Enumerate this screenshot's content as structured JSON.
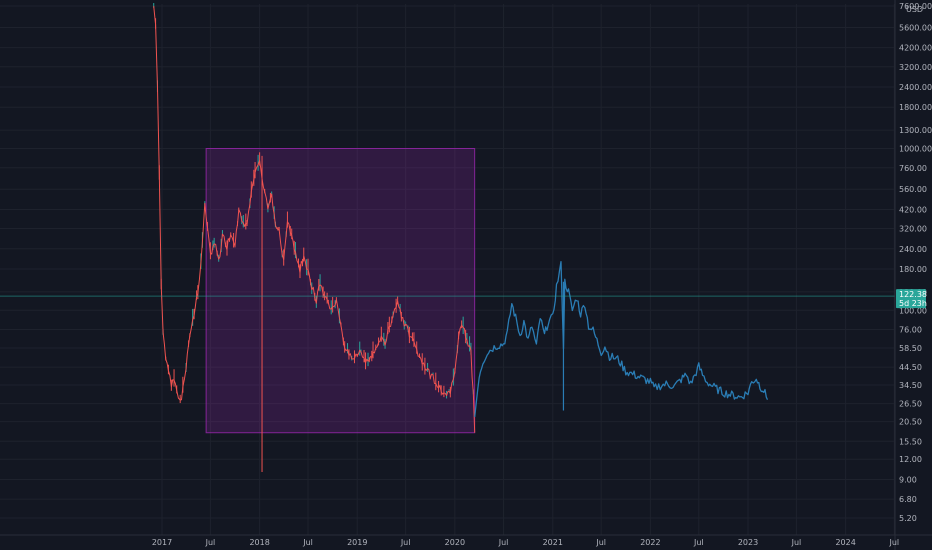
{
  "chart_data": {
    "type": "candlestick",
    "title": "",
    "currency_label": "USD",
    "y_scale": "log",
    "ylim": [
      4.5,
      7600
    ],
    "grid": true,
    "y_ticks": [
      "7600.00",
      "5600.00",
      "4200.00",
      "3200.00",
      "2400.00",
      "1800.00",
      "1300.00",
      "1000.00",
      "760.00",
      "560.00",
      "420.00",
      "320.00",
      "240.00",
      "180.00",
      "130.00",
      "100.00",
      "76.00",
      "58.50",
      "44.50",
      "34.50",
      "26.50",
      "20.50",
      "15.50",
      "12.00",
      "9.00",
      "6.80",
      "5.20"
    ],
    "y_tick_values": [
      7600,
      5600,
      4200,
      3200,
      2400,
      1800,
      1300,
      1000,
      760,
      560,
      420,
      320,
      240,
      180,
      130,
      100,
      76,
      58.5,
      44.5,
      34.5,
      26.5,
      20.5,
      15.5,
      12,
      9,
      6.8,
      5.2
    ],
    "x_ticks": [
      "2017",
      "Jul",
      "2018",
      "Jul",
      "2019",
      "Jul",
      "2020",
      "Jul",
      "2021",
      "Jul",
      "2022",
      "Jul",
      "2023",
      "Jul",
      "2024",
      "Jul"
    ],
    "x_tick_dates": [
      "2017-01-01",
      "2017-07-01",
      "2018-01-01",
      "2018-07-01",
      "2019-01-01",
      "2019-07-01",
      "2020-01-01",
      "2020-07-01",
      "2021-01-01",
      "2021-07-01",
      "2022-01-01",
      "2022-07-01",
      "2023-01-01",
      "2023-07-01",
      "2024-01-01",
      "2024-07-01"
    ],
    "last_price": {
      "value": 122.38,
      "label": "122.38",
      "countdown": "5d 23h"
    },
    "box_annotation": {
      "start": "2017-06-15",
      "end": "2020-03-15",
      "low": 17.5,
      "high": 1000,
      "color": "#9c27b0"
    },
    "series": [
      {
        "name": "",
        "color": "#ef5350",
        "up_color": "#26a69a",
        "points": [
          [
            "2016-12-01",
            7600
          ],
          [
            "2016-12-08",
            6000
          ],
          [
            "2016-12-15",
            2500
          ],
          [
            "2016-12-22",
            700
          ],
          [
            "2016-12-29",
            140
          ],
          [
            "2017-01-05",
            75
          ],
          [
            "2017-01-15",
            50
          ],
          [
            "2017-01-25",
            40
          ],
          [
            "2017-02-05",
            35
          ],
          [
            "2017-02-15",
            38
          ],
          [
            "2017-02-25",
            33
          ],
          [
            "2017-03-10",
            27
          ],
          [
            "2017-03-20",
            32
          ],
          [
            "2017-04-01",
            45
          ],
          [
            "2017-04-15",
            70
          ],
          [
            "2017-05-01",
            95
          ],
          [
            "2017-05-15",
            130
          ],
          [
            "2017-06-01",
            250
          ],
          [
            "2017-06-10",
            450
          ],
          [
            "2017-06-20",
            330
          ],
          [
            "2017-07-01",
            220
          ],
          [
            "2017-07-15",
            270
          ],
          [
            "2017-08-01",
            200
          ],
          [
            "2017-08-15",
            290
          ],
          [
            "2017-09-01",
            250
          ],
          [
            "2017-09-15",
            300
          ],
          [
            "2017-10-01",
            260
          ],
          [
            "2017-10-15",
            420
          ],
          [
            "2017-11-01",
            330
          ],
          [
            "2017-11-15",
            360
          ],
          [
            "2017-12-01",
            550
          ],
          [
            "2017-12-15",
            700
          ],
          [
            "2018-01-01",
            850
          ],
          [
            "2018-01-10",
            620
          ],
          [
            "2018-01-20",
            520
          ],
          [
            "2018-02-01",
            420
          ],
          [
            "2018-02-15",
            500
          ],
          [
            "2018-03-01",
            350
          ],
          [
            "2018-03-15",
            300
          ],
          [
            "2018-04-01",
            200
          ],
          [
            "2018-04-15",
            360
          ],
          [
            "2018-05-01",
            300
          ],
          [
            "2018-05-15",
            230
          ],
          [
            "2018-06-01",
            180
          ],
          [
            "2018-06-15",
            220
          ],
          [
            "2018-07-01",
            170
          ],
          [
            "2018-07-15",
            140
          ],
          [
            "2018-08-01",
            115
          ],
          [
            "2018-08-15",
            150
          ],
          [
            "2018-09-01",
            120
          ],
          [
            "2018-09-15",
            110
          ],
          [
            "2018-10-01",
            100
          ],
          [
            "2018-10-15",
            120
          ],
          [
            "2018-11-01",
            80
          ],
          [
            "2018-11-15",
            60
          ],
          [
            "2018-12-01",
            55
          ],
          [
            "2019-01-01",
            50
          ],
          [
            "2019-01-15",
            55
          ],
          [
            "2019-02-01",
            48
          ],
          [
            "2019-02-15",
            52
          ],
          [
            "2019-03-01",
            55
          ],
          [
            "2019-04-01",
            70
          ],
          [
            "2019-04-15",
            62
          ],
          [
            "2019-05-01",
            80
          ],
          [
            "2019-05-15",
            90
          ],
          [
            "2019-06-01",
            120
          ],
          [
            "2019-06-15",
            95
          ],
          [
            "2019-07-01",
            80
          ],
          [
            "2019-07-15",
            70
          ],
          [
            "2019-08-01",
            62
          ],
          [
            "2019-09-01",
            48
          ],
          [
            "2019-10-01",
            40
          ],
          [
            "2019-11-01",
            35
          ],
          [
            "2019-12-01",
            29
          ],
          [
            "2019-12-15",
            32
          ],
          [
            "2020-01-01",
            40
          ],
          [
            "2020-01-15",
            70
          ],
          [
            "2020-02-01",
            80
          ],
          [
            "2020-02-15",
            65
          ],
          [
            "2020-03-01",
            55
          ],
          [
            "2020-03-10",
            30
          ],
          [
            "2020-03-15",
            17.5
          ]
        ]
      },
      {
        "name": "",
        "color": "#2a7db5",
        "points": [
          [
            "2020-03-15",
            22
          ],
          [
            "2020-04-01",
            40
          ],
          [
            "2020-04-15",
            48
          ],
          [
            "2020-05-01",
            55
          ],
          [
            "2020-06-01",
            60
          ],
          [
            "2020-07-01",
            62
          ],
          [
            "2020-07-15",
            72
          ],
          [
            "2020-08-01",
            110
          ],
          [
            "2020-08-15",
            90
          ],
          [
            "2020-09-01",
            70
          ],
          [
            "2020-09-15",
            85
          ],
          [
            "2020-10-01",
            65
          ],
          [
            "2020-10-15",
            80
          ],
          [
            "2020-11-01",
            60
          ],
          [
            "2020-11-15",
            90
          ],
          [
            "2020-12-01",
            70
          ],
          [
            "2020-12-15",
            85
          ],
          [
            "2021-01-01",
            90
          ],
          [
            "2021-01-15",
            140
          ],
          [
            "2021-02-01",
            190
          ],
          [
            "2021-02-10",
            60
          ],
          [
            "2021-02-15",
            150
          ],
          [
            "2021-03-01",
            130
          ],
          [
            "2021-03-15",
            100
          ],
          [
            "2021-04-01",
            120
          ],
          [
            "2021-04-15",
            95
          ],
          [
            "2021-05-01",
            110
          ],
          [
            "2021-05-15",
            80
          ],
          [
            "2021-06-01",
            75
          ],
          [
            "2021-06-15",
            65
          ],
          [
            "2021-07-01",
            55
          ],
          [
            "2021-07-15",
            60
          ],
          [
            "2021-08-01",
            52
          ],
          [
            "2021-09-01",
            50
          ],
          [
            "2021-10-01",
            42
          ],
          [
            "2021-11-01",
            40
          ],
          [
            "2021-12-01",
            38
          ],
          [
            "2022-01-01",
            36
          ],
          [
            "2022-01-15",
            33
          ],
          [
            "2022-02-01",
            34
          ],
          [
            "2022-03-01",
            35
          ],
          [
            "2022-04-01",
            34
          ],
          [
            "2022-05-01",
            38
          ],
          [
            "2022-05-15",
            40
          ],
          [
            "2022-06-01",
            35
          ],
          [
            "2022-07-01",
            45
          ],
          [
            "2022-07-15",
            40
          ],
          [
            "2022-08-01",
            36
          ],
          [
            "2022-09-01",
            33
          ],
          [
            "2022-10-01",
            31
          ],
          [
            "2022-11-01",
            30
          ],
          [
            "2022-12-01",
            29
          ],
          [
            "2023-01-01",
            31
          ],
          [
            "2023-01-15",
            36
          ],
          [
            "2023-02-01",
            38
          ],
          [
            "2023-02-15",
            34
          ],
          [
            "2023-03-01",
            32
          ],
          [
            "2023-03-15",
            28
          ]
        ]
      }
    ]
  }
}
